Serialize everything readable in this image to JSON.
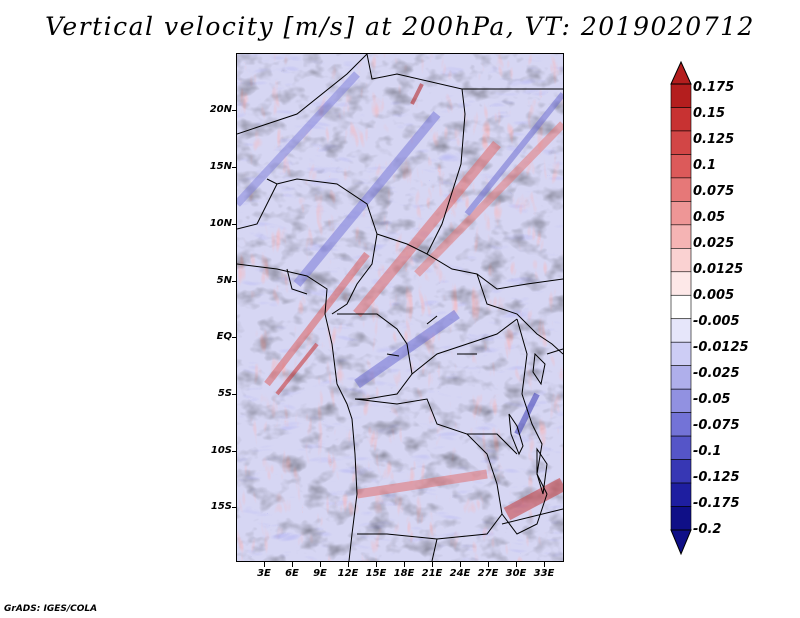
{
  "title": "Vertical velocity [m/s] at 200hPa, VT: 2019020712",
  "credit": "GrADS: IGES/COLA",
  "map": {
    "variable": "Vertical velocity",
    "units": "m/s",
    "level": "200hPa",
    "valid_time": "2019020712",
    "lat_labels": [
      "20N",
      "15N",
      "10N",
      "5N",
      "EQ",
      "5S",
      "10S",
      "15S"
    ],
    "lon_labels": [
      "3E",
      "6E",
      "9E",
      "12E",
      "15E",
      "18E",
      "21E",
      "24E",
      "27E",
      "30E",
      "33E"
    ],
    "lat_range": [
      -20.5,
      24.5
    ],
    "lon_range": [
      0,
      35
    ]
  },
  "colorbar": {
    "labels": [
      "0.175",
      "0.15",
      "0.125",
      "0.1",
      "0.075",
      "0.05",
      "0.025",
      "0.0125",
      "0.005",
      "-0.005",
      "-0.0125",
      "-0.025",
      "-0.05",
      "-0.075",
      "-0.1",
      "-0.125",
      "-0.175",
      "-0.2"
    ],
    "colors": [
      "#b41e1e",
      "#c83232",
      "#d24646",
      "#dc5a5a",
      "#e67878",
      "#ee9696",
      "#f5b4b4",
      "#fad2d2",
      "#fde8e8",
      "#ffffff",
      "#e6e6fa",
      "#cdcdf5",
      "#afafeb",
      "#9191e1",
      "#7373d7",
      "#5555c8",
      "#3737b4",
      "#1e1ea0",
      "#0f0f87"
    ]
  },
  "icons": {
    "max_arrow": "triangle-up-icon",
    "min_arrow": "triangle-down-icon"
  }
}
